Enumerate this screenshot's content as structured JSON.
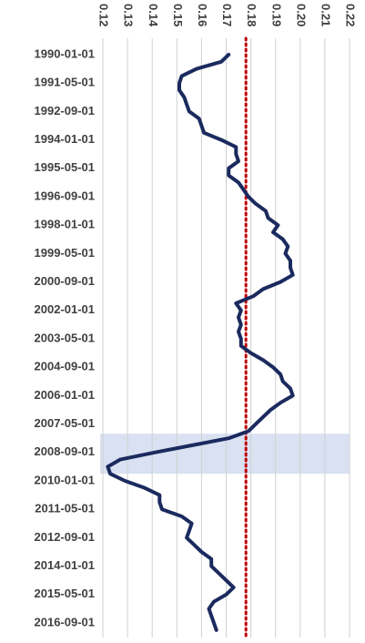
{
  "chart_data": {
    "type": "line",
    "orientation": "vertical",
    "categories": [
      "1990-01-01",
      null,
      null,
      null,
      "1991-05-01",
      null,
      null,
      null,
      "1992-09-01",
      null,
      null,
      null,
      "1994-01-01",
      null,
      null,
      null,
      "1995-05-01",
      null,
      null,
      null,
      "1996-09-01",
      null,
      null,
      null,
      "1998-01-01",
      null,
      null,
      null,
      "1999-05-01",
      null,
      null,
      null,
      "2000-09-01",
      null,
      null,
      null,
      "2002-01-01",
      null,
      null,
      null,
      "2003-05-01",
      null,
      null,
      null,
      "2004-09-01",
      null,
      null,
      null,
      "2006-01-01",
      null,
      null,
      null,
      "2007-05-01",
      null,
      null,
      null,
      "2008-09-01",
      null,
      null,
      null,
      "2010-01-01",
      null,
      null,
      null,
      "2011-05-01",
      null,
      null,
      null,
      "2012-09-01",
      null,
      null,
      null,
      "2014-01-01",
      null,
      null,
      null,
      "2015-05-01",
      null,
      null,
      null,
      "2016-09-01",
      null
    ],
    "series": [
      {
        "color": "#1b2a5e",
        "values": [
          0.171,
          0.168,
          0.158,
          0.152,
          0.151,
          0.151,
          0.153,
          0.154,
          0.155,
          0.159,
          0.16,
          0.161,
          0.168,
          0.174,
          0.174,
          0.175,
          0.171,
          0.171,
          0.175,
          0.177,
          0.179,
          0.182,
          0.186,
          0.187,
          0.191,
          0.189,
          0.193,
          0.195,
          0.194,
          0.196,
          0.196,
          0.197,
          0.192,
          0.185,
          0.181,
          0.174,
          0.176,
          0.175,
          0.176,
          0.175,
          0.176,
          0.176,
          0.18,
          0.185,
          0.189,
          0.192,
          0.193,
          0.196,
          0.197,
          0.192,
          0.188,
          0.185,
          0.182,
          0.179,
          0.171,
          0.156,
          0.141,
          0.127,
          0.122,
          0.123,
          0.129,
          0.137,
          0.143,
          0.143,
          0.144,
          0.152,
          0.156,
          0.155,
          0.154,
          0.157,
          0.16,
          0.164,
          0.164,
          0.167,
          0.17,
          0.173,
          0.17,
          0.165,
          0.163,
          0.164,
          0.165,
          0.166
        ]
      }
    ],
    "xlim": [
      0.12,
      0.22
    ],
    "xticks": [
      0.12,
      0.13,
      0.14,
      0.15,
      0.16,
      0.17,
      0.18,
      0.19,
      {
        "value": 0.2,
        "label": "0.20"
      },
      0.21,
      0.22
    ],
    "grid": true,
    "reference_line": {
      "value": 0.178,
      "color": "#c00000"
    },
    "highlight": {
      "range": [
        54,
        59
      ],
      "color": "#d9e1f2"
    }
  }
}
